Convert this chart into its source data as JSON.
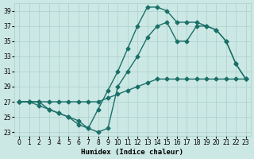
{
  "xlabel": "Humidex (Indice chaleur)",
  "bg_color": "#cce8e4",
  "line_color": "#1a7068",
  "grid_color": "#aacfcb",
  "xlim": [
    -0.5,
    23.5
  ],
  "ylim": [
    22.5,
    40.0
  ],
  "xticks": [
    0,
    1,
    2,
    3,
    4,
    5,
    6,
    7,
    8,
    9,
    10,
    11,
    12,
    13,
    14,
    15,
    16,
    17,
    18,
    19,
    20,
    21,
    22,
    23
  ],
  "yticks": [
    23,
    25,
    27,
    29,
    31,
    33,
    35,
    37,
    39
  ],
  "line1_x": [
    0,
    1,
    2,
    3,
    4,
    5,
    6,
    7,
    8,
    9,
    10,
    11,
    12,
    13,
    14,
    15,
    16,
    17,
    18,
    19,
    20,
    21,
    22,
    23
  ],
  "line1_y": [
    27,
    27,
    27,
    27,
    27,
    27,
    27,
    27,
    27,
    27.5,
    28,
    28.5,
    29,
    29.5,
    30,
    30,
    30,
    30,
    30,
    30,
    30,
    30,
    30,
    30
  ],
  "line2_x": [
    0,
    1,
    2,
    3,
    4,
    5,
    6,
    7,
    8,
    9,
    10,
    11,
    12,
    13,
    14,
    15,
    16,
    17,
    18,
    19,
    20,
    21,
    22,
    23
  ],
  "line2_y": [
    27,
    27,
    26.5,
    26,
    25.5,
    25,
    24.5,
    23.5,
    23,
    23.5,
    29,
    31,
    33,
    35.5,
    37,
    37.5,
    35,
    35,
    37,
    37,
    36.5,
    35,
    32,
    30
  ],
  "line3_x": [
    0,
    1,
    2,
    3,
    4,
    5,
    6,
    7,
    8,
    9,
    10,
    11,
    12,
    13,
    14,
    15,
    16,
    17,
    18,
    19,
    20,
    21,
    22,
    23
  ],
  "line3_y": [
    27,
    27,
    27,
    26,
    25.5,
    25,
    24,
    23.5,
    26,
    28.5,
    31,
    34,
    37,
    39.5,
    39.5,
    39,
    37.5,
    37.5,
    37.5,
    37,
    36.5,
    35,
    32,
    30
  ],
  "marker": "D",
  "markersize": 2.5,
  "linewidth": 1.0
}
